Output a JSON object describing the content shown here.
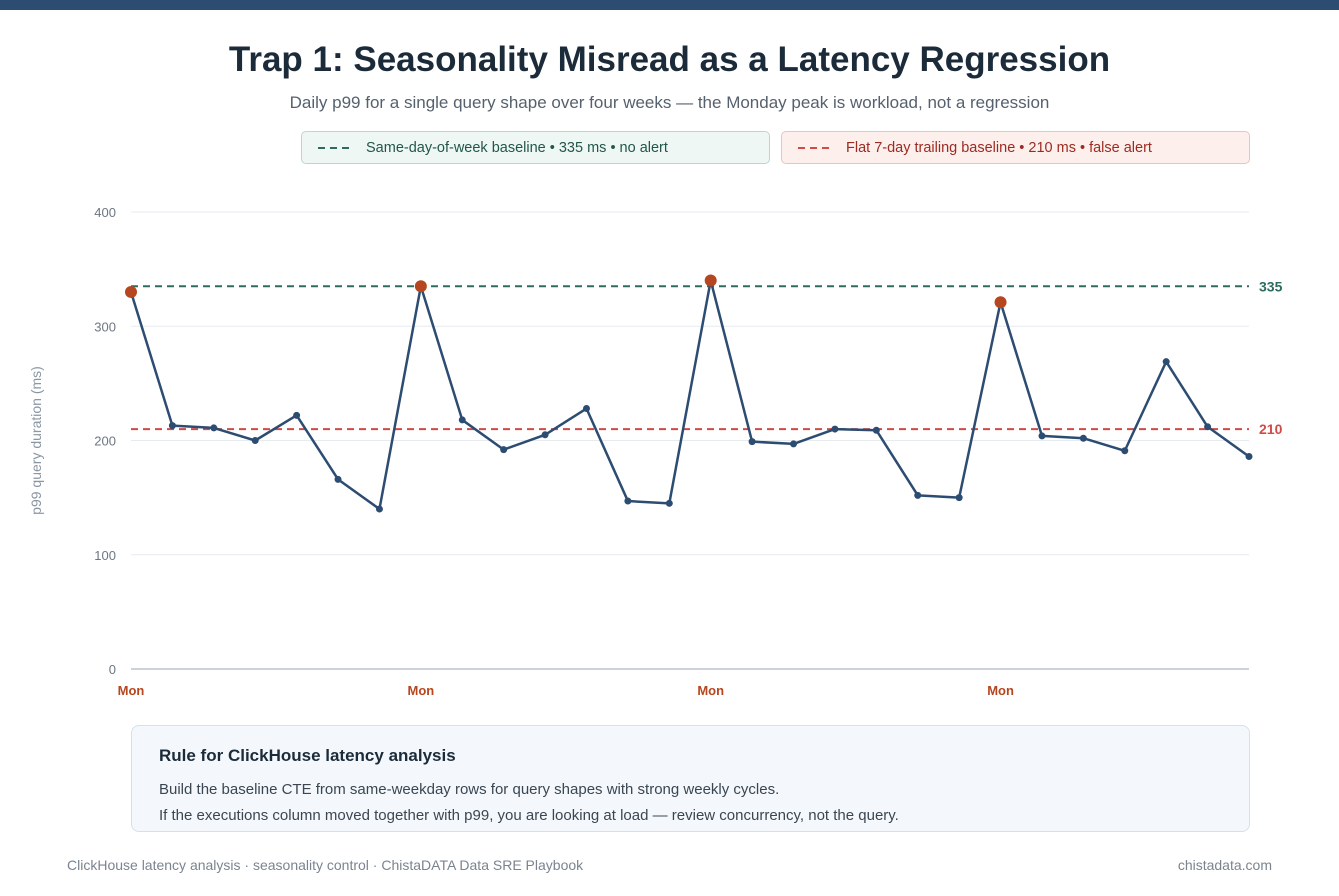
{
  "header": {
    "title": "Trap 1: Seasonality Misread as a Latency Regression",
    "subtitle": "Daily p99 for a single query shape over four weeks — the Monday peak is workload, not a regression"
  },
  "legend": {
    "good": "Same-day-of-week baseline • 335 ms • no alert",
    "bad": "Flat 7-day trailing baseline • 210 ms • false alert"
  },
  "chart_data": {
    "type": "line",
    "ylabel": "p99 query duration (ms)",
    "ylim": [
      0,
      400
    ],
    "yticks": [
      0,
      100,
      200,
      300,
      400
    ],
    "grid": true,
    "x_labels": [
      {
        "index": 0,
        "label": "Mon"
      },
      {
        "index": 7,
        "label": "Mon"
      },
      {
        "index": 14,
        "label": "Mon"
      },
      {
        "index": 21,
        "label": "Mon"
      }
    ],
    "series": [
      {
        "values": [
          330,
          213,
          211,
          200,
          222,
          166,
          140,
          335,
          218,
          192,
          205,
          228,
          147,
          145,
          340,
          199,
          197,
          210,
          209,
          152,
          150,
          321,
          204,
          202,
          191,
          269,
          212,
          186
        ],
        "highlight_indices": [
          0,
          7,
          14,
          21
        ]
      }
    ],
    "baselines": [
      {
        "value": 335,
        "label": "335",
        "color": "#2f6b5f"
      },
      {
        "value": 210,
        "label": "210",
        "color": "#d14b45"
      }
    ],
    "colors": {
      "line": "#2d4c72",
      "highlight": "#b5461f",
      "monday_label": "#b5461f"
    }
  },
  "rule": {
    "title": "Rule for ClickHouse latency analysis",
    "line1": "Build the baseline CTE from same-weekday rows for query shapes with strong weekly cycles.",
    "line2": "If the executions column moved together with p99, you are looking at load — review concurrency, not the query."
  },
  "footer": {
    "left": "ClickHouse latency analysis · seasonality control · ChistaDATA Data SRE Playbook",
    "right": "chistadata.com"
  }
}
